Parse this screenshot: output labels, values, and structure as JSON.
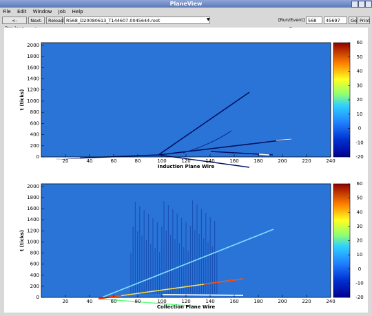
{
  "window": {
    "title": "PlaneView"
  },
  "menu": [
    "File",
    "Edit",
    "Window",
    "Job",
    "Help"
  ],
  "toolbar": {
    "previous": "<-Previous",
    "next": "Next->",
    "reload": "Reload",
    "file": "R568_D20080613_T144607.0045644.root",
    "run_event_label": "[Run/Event] =",
    "run": "568",
    "event": "45697",
    "go": "Go",
    "print": "Print"
  },
  "plots": [
    {
      "type": "heatmap",
      "xlabel": "Induction Plane Wire",
      "ylabel": "t (ticks)",
      "xlim": [
        0,
        240
      ],
      "xticks": [
        20,
        40,
        60,
        80,
        100,
        120,
        140,
        160,
        180,
        200,
        220,
        240
      ],
      "ylim": [
        0,
        2048
      ],
      "yticks": [
        0,
        200,
        400,
        600,
        800,
        1000,
        1200,
        1400,
        1600,
        1800,
        2000
      ],
      "zlim": [
        -20,
        60
      ],
      "zticks": [
        -20,
        -10,
        0,
        10,
        20,
        30,
        40,
        50,
        60
      ]
    },
    {
      "type": "heatmap",
      "xlabel": "Collection Plane Wire",
      "ylabel": "t (ticks)",
      "xlim": [
        0,
        240
      ],
      "xticks": [
        20,
        40,
        60,
        80,
        100,
        120,
        140,
        160,
        180,
        200,
        220,
        240
      ],
      "ylim": [
        0,
        2048
      ],
      "yticks": [
        0,
        200,
        400,
        600,
        800,
        1000,
        1200,
        1400,
        1600,
        1800,
        2000
      ],
      "zlim": [
        -20,
        60
      ],
      "zticks": [
        -20,
        -10,
        0,
        10,
        20,
        30,
        40,
        50,
        60
      ]
    }
  ]
}
